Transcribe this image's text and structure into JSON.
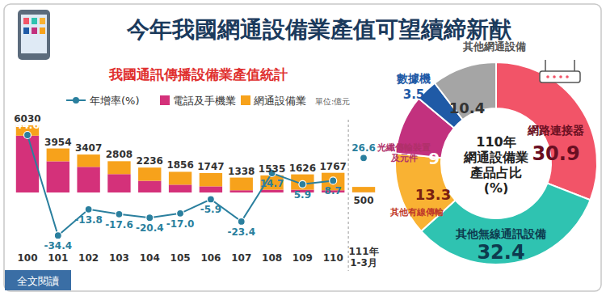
{
  "header": {
    "title": "今年我國網通設備業產值可望續締新猷"
  },
  "footer": {
    "link": "全文閱讀"
  },
  "chart_data": [
    {
      "type": "bar",
      "title": "我國通訊傳播設備業產值統計",
      "unit_label": "單位:億元",
      "categories": [
        "100",
        "101",
        "102",
        "103",
        "104",
        "105",
        "106",
        "107",
        "108",
        "109",
        "110",
        "111年\n1-3月"
      ],
      "stacked": true,
      "data_labels": true,
      "tick_labels": false,
      "legend": "top",
      "ylim": [
        0,
        6500
      ],
      "y2lim": [
        -40,
        50
      ],
      "totals": [
        6030,
        3954,
        3407,
        2808,
        2236,
        1856,
        1747,
        1338,
        1535,
        1626,
        1767,
        500
      ],
      "series": [
        {
          "name": "電話及手機業",
          "type": "bar",
          "color": "#d4317a",
          "values": [
            5100,
            2800,
            2300,
            1650,
            1050,
            700,
            550,
            200,
            250,
            250,
            200,
            20
          ]
        },
        {
          "name": "網通設備業",
          "type": "bar",
          "color": "#f7a21b",
          "values": [
            930,
            1154,
            1107,
            1158,
            1186,
            1156,
            1197,
            1138,
            1285,
            1376,
            1567,
            480
          ]
        },
        {
          "name": "年增率(%)",
          "type": "line",
          "axis": "y2",
          "color": "#2a7f9e",
          "marker": "circle",
          "line_style": "solid",
          "values": [
            44.6,
            -34.4,
            -13.8,
            -17.6,
            -20.4,
            -17.0,
            -5.9,
            -23.4,
            14.7,
            5.9,
            8.7,
            26.6
          ],
          "value_labels": [
            "44.6",
            "-34.4",
            "-13.8",
            "-17.6",
            "-20.4",
            "-17.0",
            "-5.9",
            "-23.4",
            "14.7",
            "5.9",
            "8.7",
            "26.6"
          ]
        }
      ]
    },
    {
      "type": "pie",
      "title": "110年\n網通設備業\n產品占比\n(%)",
      "data_labels": true,
      "categories": [
        "網路連接器",
        "其他無線通訊設備",
        "其他有線傳輸",
        "光纖傳輸裝置\n及元件",
        "數據機",
        "其他網通設備"
      ],
      "values": [
        30.9,
        32.4,
        13.3,
        9.5,
        3.5,
        10.4
      ],
      "colors": [
        "#f25468",
        "#2fc3b1",
        "#f9b233",
        "#c2317e",
        "#1f5aa6",
        "#a5a5a5"
      ]
    }
  ]
}
